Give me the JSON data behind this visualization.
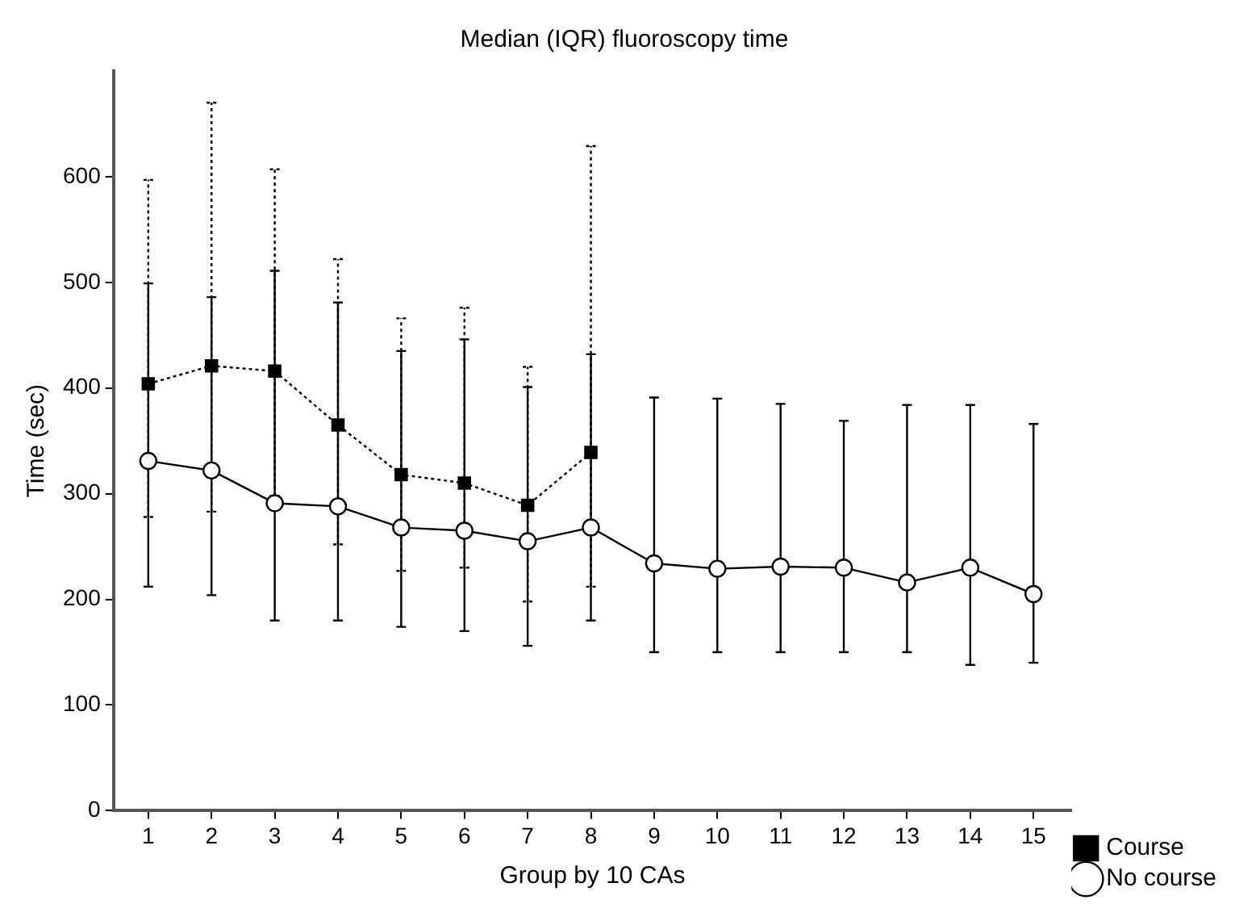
{
  "chart_data": {
    "type": "line",
    "title": "Median (IQR) fluoroscopy time",
    "xlabel": "Group by 10 CAs",
    "ylabel": "Time (sec)",
    "xlim": [
      0.45,
      15.6
    ],
    "xticks": [
      1,
      2,
      3,
      4,
      5,
      6,
      7,
      8,
      9,
      10,
      11,
      12,
      13,
      14,
      15
    ],
    "ylim": [
      0,
      700
    ],
    "yticks": [
      0,
      100,
      200,
      300,
      400,
      500,
      600
    ],
    "grid": false,
    "legend": "bottom right",
    "series": [
      {
        "name": "Course",
        "color": "#000000",
        "marker": "square",
        "line_style": "dotted",
        "x": [
          1,
          2,
          3,
          4,
          5,
          6,
          7,
          8
        ],
        "values": [
          404,
          421,
          416,
          365,
          318,
          310,
          289,
          339
        ],
        "errors": [
          [
            278,
            597
          ],
          [
            283,
            670
          ],
          [
            298,
            607
          ],
          [
            252,
            522
          ],
          [
            227,
            466
          ],
          [
            230,
            476
          ],
          [
            198,
            420
          ],
          [
            212,
            629
          ]
        ]
      },
      {
        "name": "No course",
        "color": "#000000",
        "marker": "circle",
        "line_style": "solid",
        "x": [
          1,
          2,
          3,
          4,
          5,
          6,
          7,
          8,
          9,
          10,
          11,
          12,
          13,
          14,
          15
        ],
        "values": [
          331,
          322,
          291,
          288,
          268,
          265,
          255,
          268,
          234,
          229,
          231,
          230,
          216,
          230,
          205
        ],
        "errors": [
          [
            212,
            499
          ],
          [
            204,
            486
          ],
          [
            180,
            511
          ],
          [
            180,
            481
          ],
          [
            174,
            435
          ],
          [
            170,
            446
          ],
          [
            156,
            401
          ],
          [
            180,
            432
          ],
          [
            150,
            391
          ],
          [
            150,
            390
          ],
          [
            150,
            385
          ],
          [
            150,
            369
          ],
          [
            150,
            384
          ],
          [
            138,
            384
          ],
          [
            140,
            366
          ]
        ]
      }
    ]
  }
}
